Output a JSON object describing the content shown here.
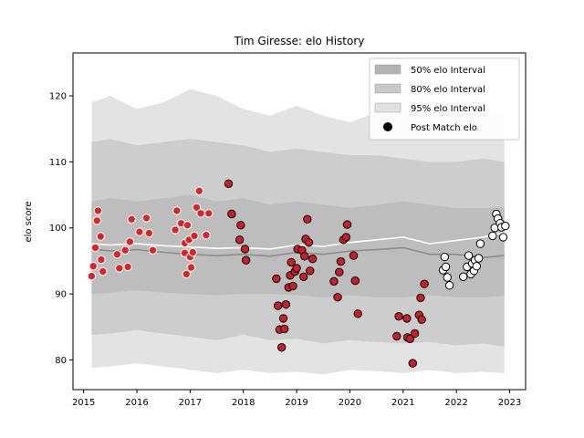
{
  "chart_data": {
    "type": "scatter",
    "title": "Tim Giresse: elo History",
    "xlabel": "",
    "ylabel": "elo score",
    "xlim": [
      2014.8,
      2023.3
    ],
    "ylim": [
      75.5,
      126.5
    ],
    "x_ticks": [
      "2015",
      "2016",
      "2017",
      "2018",
      "2019",
      "2020",
      "2021",
      "2022",
      "2023"
    ],
    "y_ticks": [
      "80",
      "90",
      "100",
      "110",
      "120"
    ],
    "grid": false,
    "legend_position": "top-right",
    "legend": [
      {
        "label": "50% elo Interval",
        "color": "#b3b3b3",
        "kind": "patch"
      },
      {
        "label": "80% elo Interval",
        "color": "#c8c8c8",
        "kind": "patch"
      },
      {
        "label": "95% elo Interval",
        "color": "#e0e0e0",
        "kind": "patch"
      },
      {
        "label": "Post Match elo",
        "color": "#000000",
        "kind": "marker"
      }
    ],
    "colors": {
      "band95": "#e3e3e3",
      "band80": "#cdcdcd",
      "band50": "#bdbdbd",
      "median_line": "#8c8c8c",
      "mean_line": "#ffffff",
      "point_early": "#d62728",
      "point_mid": "#c8202a",
      "point_recent": "#ffffff"
    },
    "bands": {
      "x": [
        2015.15,
        2015.5,
        2016.0,
        2016.5,
        2017.0,
        2017.5,
        2018.0,
        2018.5,
        2019.0,
        2019.5,
        2020.0,
        2020.5,
        2021.0,
        2021.5,
        2022.0,
        2022.5,
        2022.9
      ],
      "p95_low": [
        78.8,
        79.0,
        79.5,
        79.0,
        78.5,
        78.0,
        78.5,
        78.0,
        78.2,
        77.8,
        78.5,
        78.3,
        78.0,
        78.5,
        78.0,
        78.2,
        78.0
      ],
      "p95_high": [
        119.0,
        120.0,
        118.0,
        119.0,
        121.0,
        120.0,
        118.0,
        117.0,
        118.5,
        117.0,
        116.0,
        117.5,
        118.0,
        117.0,
        117.5,
        117.0,
        117.0
      ],
      "p80_low": [
        83.8,
        84.0,
        84.5,
        84.0,
        83.5,
        83.0,
        83.8,
        83.0,
        83.2,
        82.5,
        83.0,
        82.7,
        82.5,
        82.7,
        82.2,
        82.5,
        82.0
      ],
      "p80_high": [
        113.0,
        113.5,
        112.5,
        113.0,
        113.5,
        113.0,
        112.5,
        111.5,
        112.0,
        111.5,
        111.0,
        111.0,
        110.5,
        110.0,
        110.0,
        110.5,
        110.0
      ],
      "p50_low": [
        90.0,
        90.2,
        90.5,
        90.2,
        90.0,
        89.8,
        90.0,
        90.0,
        89.8,
        89.5,
        89.8,
        89.5,
        89.5,
        89.8,
        89.5,
        89.5,
        89.7
      ],
      "p50_high": [
        104.0,
        104.5,
        104.0,
        104.5,
        105.0,
        104.0,
        104.5,
        103.5,
        104.0,
        103.5,
        103.0,
        103.5,
        104.0,
        103.5,
        103.0,
        103.0,
        103.2
      ],
      "median": [
        96.8,
        96.5,
        96.7,
        96.3,
        96.0,
        95.8,
        96.0,
        95.7,
        96.3,
        96.0,
        96.5,
        96.7,
        97.0,
        96.0,
        96.0,
        95.5,
        95.8
      ],
      "mean": [
        97.6,
        97.4,
        97.6,
        97.3,
        97.1,
        96.9,
        97.0,
        96.8,
        97.4,
        97.2,
        97.8,
        98.2,
        98.6,
        97.6,
        98.1,
        98.6,
        99.3
      ]
    },
    "points": [
      {
        "x": 2015.15,
        "y": 92.7,
        "group": "early"
      },
      {
        "x": 2015.18,
        "y": 94.2,
        "group": "early"
      },
      {
        "x": 2015.22,
        "y": 97.0,
        "group": "early"
      },
      {
        "x": 2015.25,
        "y": 101.1,
        "group": "early"
      },
      {
        "x": 2015.27,
        "y": 102.6,
        "group": "early"
      },
      {
        "x": 2015.32,
        "y": 98.7,
        "group": "early"
      },
      {
        "x": 2015.33,
        "y": 95.2,
        "group": "early"
      },
      {
        "x": 2015.36,
        "y": 93.4,
        "group": "early"
      },
      {
        "x": 2015.63,
        "y": 96.0,
        "group": "early"
      },
      {
        "x": 2015.67,
        "y": 93.9,
        "group": "early"
      },
      {
        "x": 2015.78,
        "y": 96.6,
        "group": "early"
      },
      {
        "x": 2015.83,
        "y": 94.1,
        "group": "early"
      },
      {
        "x": 2015.87,
        "y": 97.9,
        "group": "early"
      },
      {
        "x": 2015.9,
        "y": 101.3,
        "group": "early"
      },
      {
        "x": 2016.05,
        "y": 99.4,
        "group": "early"
      },
      {
        "x": 2016.18,
        "y": 101.5,
        "group": "early"
      },
      {
        "x": 2016.23,
        "y": 99.2,
        "group": "early"
      },
      {
        "x": 2016.3,
        "y": 96.6,
        "group": "early"
      },
      {
        "x": 2016.72,
        "y": 99.7,
        "group": "early"
      },
      {
        "x": 2016.75,
        "y": 102.6,
        "group": "early"
      },
      {
        "x": 2016.83,
        "y": 100.7,
        "group": "early"
      },
      {
        "x": 2016.9,
        "y": 97.7,
        "group": "early"
      },
      {
        "x": 2016.9,
        "y": 96.2,
        "group": "early"
      },
      {
        "x": 2016.95,
        "y": 100.4,
        "group": "early"
      },
      {
        "x": 2016.98,
        "y": 98.2,
        "group": "early"
      },
      {
        "x": 2017.0,
        "y": 95.6,
        "group": "early"
      },
      {
        "x": 2016.93,
        "y": 93.0,
        "group": "early"
      },
      {
        "x": 2017.02,
        "y": 94.0,
        "group": "early"
      },
      {
        "x": 2017.05,
        "y": 96.3,
        "group": "early"
      },
      {
        "x": 2017.08,
        "y": 98.8,
        "group": "early"
      },
      {
        "x": 2017.12,
        "y": 103.1,
        "group": "early"
      },
      {
        "x": 2017.17,
        "y": 105.6,
        "group": "early"
      },
      {
        "x": 2017.2,
        "y": 102.2,
        "group": "early"
      },
      {
        "x": 2017.3,
        "y": 98.9,
        "group": "early"
      },
      {
        "x": 2017.35,
        "y": 102.2,
        "group": "early"
      },
      {
        "x": 2017.72,
        "y": 106.7,
        "group": "mid"
      },
      {
        "x": 2017.78,
        "y": 102.1,
        "group": "mid"
      },
      {
        "x": 2017.95,
        "y": 100.4,
        "group": "mid"
      },
      {
        "x": 2017.93,
        "y": 98.2,
        "group": "mid"
      },
      {
        "x": 2018.03,
        "y": 96.8,
        "group": "mid"
      },
      {
        "x": 2018.05,
        "y": 95.1,
        "group": "mid"
      },
      {
        "x": 2018.62,
        "y": 92.3,
        "group": "mid"
      },
      {
        "x": 2018.65,
        "y": 88.2,
        "group": "mid"
      },
      {
        "x": 2018.68,
        "y": 84.6,
        "group": "mid"
      },
      {
        "x": 2018.72,
        "y": 81.9,
        "group": "mid"
      },
      {
        "x": 2018.75,
        "y": 86.3,
        "group": "mid"
      },
      {
        "x": 2018.77,
        "y": 84.7,
        "group": "mid"
      },
      {
        "x": 2018.8,
        "y": 88.4,
        "group": "mid"
      },
      {
        "x": 2018.85,
        "y": 91.0,
        "group": "mid"
      },
      {
        "x": 2018.88,
        "y": 92.8,
        "group": "mid"
      },
      {
        "x": 2018.9,
        "y": 94.8,
        "group": "mid"
      },
      {
        "x": 2018.93,
        "y": 91.2,
        "group": "mid"
      },
      {
        "x": 2018.97,
        "y": 93.4,
        "group": "mid"
      },
      {
        "x": 2019.0,
        "y": 93.9,
        "group": "mid"
      },
      {
        "x": 2019.02,
        "y": 96.8,
        "group": "mid"
      },
      {
        "x": 2019.1,
        "y": 96.6,
        "group": "mid"
      },
      {
        "x": 2019.13,
        "y": 92.6,
        "group": "mid"
      },
      {
        "x": 2019.15,
        "y": 95.7,
        "group": "mid"
      },
      {
        "x": 2019.17,
        "y": 98.3,
        "group": "mid"
      },
      {
        "x": 2019.2,
        "y": 101.3,
        "group": "mid"
      },
      {
        "x": 2019.23,
        "y": 97.8,
        "group": "mid"
      },
      {
        "x": 2019.25,
        "y": 93.5,
        "group": "mid"
      },
      {
        "x": 2019.3,
        "y": 95.3,
        "group": "mid"
      },
      {
        "x": 2019.7,
        "y": 91.9,
        "group": "mid"
      },
      {
        "x": 2019.77,
        "y": 89.5,
        "group": "mid"
      },
      {
        "x": 2019.8,
        "y": 93.3,
        "group": "mid"
      },
      {
        "x": 2019.83,
        "y": 94.9,
        "group": "mid"
      },
      {
        "x": 2019.88,
        "y": 98.2,
        "group": "mid"
      },
      {
        "x": 2019.93,
        "y": 98.6,
        "group": "mid"
      },
      {
        "x": 2019.95,
        "y": 100.5,
        "group": "mid"
      },
      {
        "x": 2020.07,
        "y": 95.8,
        "group": "mid"
      },
      {
        "x": 2020.1,
        "y": 92.0,
        "group": "mid"
      },
      {
        "x": 2020.15,
        "y": 87.0,
        "group": "mid"
      },
      {
        "x": 2020.88,
        "y": 83.6,
        "group": "mid"
      },
      {
        "x": 2020.92,
        "y": 86.6,
        "group": "mid"
      },
      {
        "x": 2021.07,
        "y": 86.3,
        "group": "mid"
      },
      {
        "x": 2021.08,
        "y": 83.4,
        "group": "mid"
      },
      {
        "x": 2021.13,
        "y": 83.2,
        "group": "mid"
      },
      {
        "x": 2021.18,
        "y": 79.5,
        "group": "mid"
      },
      {
        "x": 2021.22,
        "y": 84.0,
        "group": "mid"
      },
      {
        "x": 2021.3,
        "y": 86.8,
        "group": "mid"
      },
      {
        "x": 2021.33,
        "y": 89.4,
        "group": "mid"
      },
      {
        "x": 2021.35,
        "y": 86.1,
        "group": "mid"
      },
      {
        "x": 2021.4,
        "y": 91.5,
        "group": "mid"
      },
      {
        "x": 2021.75,
        "y": 93.6,
        "group": "recent"
      },
      {
        "x": 2021.78,
        "y": 95.6,
        "group": "recent"
      },
      {
        "x": 2021.8,
        "y": 94.1,
        "group": "recent"
      },
      {
        "x": 2021.83,
        "y": 92.5,
        "group": "recent"
      },
      {
        "x": 2021.87,
        "y": 91.3,
        "group": "recent"
      },
      {
        "x": 2022.13,
        "y": 92.6,
        "group": "recent"
      },
      {
        "x": 2022.2,
        "y": 94.1,
        "group": "recent"
      },
      {
        "x": 2022.23,
        "y": 95.8,
        "group": "recent"
      },
      {
        "x": 2022.27,
        "y": 93.0,
        "group": "recent"
      },
      {
        "x": 2022.3,
        "y": 94.6,
        "group": "recent"
      },
      {
        "x": 2022.33,
        "y": 93.5,
        "group": "recent"
      },
      {
        "x": 2022.35,
        "y": 95.1,
        "group": "recent"
      },
      {
        "x": 2022.38,
        "y": 94.2,
        "group": "recent"
      },
      {
        "x": 2022.42,
        "y": 95.4,
        "group": "recent"
      },
      {
        "x": 2022.45,
        "y": 97.6,
        "group": "recent"
      },
      {
        "x": 2022.68,
        "y": 98.8,
        "group": "recent"
      },
      {
        "x": 2022.72,
        "y": 100.0,
        "group": "recent"
      },
      {
        "x": 2022.75,
        "y": 102.1,
        "group": "recent"
      },
      {
        "x": 2022.78,
        "y": 101.4,
        "group": "recent"
      },
      {
        "x": 2022.82,
        "y": 100.7,
        "group": "recent"
      },
      {
        "x": 2022.85,
        "y": 100.1,
        "group": "recent"
      },
      {
        "x": 2022.88,
        "y": 98.6,
        "group": "recent"
      },
      {
        "x": 2022.92,
        "y": 100.3,
        "group": "recent"
      }
    ]
  }
}
